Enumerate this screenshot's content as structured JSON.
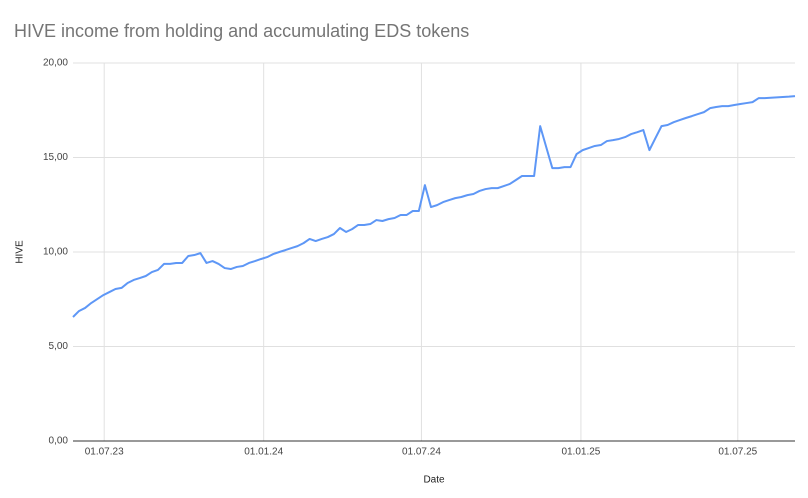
{
  "chart_data": {
    "type": "line",
    "title": "HIVE income from holding and accumulating EDS tokens",
    "x_label": "Date",
    "y_label": "HIVE",
    "x": [
      "2023-05-26",
      "2023-06-02",
      "2023-06-09",
      "2023-06-16",
      "2023-06-23",
      "2023-06-30",
      "2023-07-07",
      "2023-07-14",
      "2023-07-21",
      "2023-07-28",
      "2023-08-04",
      "2023-08-11",
      "2023-08-18",
      "2023-08-25",
      "2023-09-01",
      "2023-09-08",
      "2023-09-15",
      "2023-09-22",
      "2023-09-29",
      "2023-10-06",
      "2023-10-13",
      "2023-10-20",
      "2023-10-27",
      "2023-11-03",
      "2023-11-10",
      "2023-11-17",
      "2023-11-24",
      "2023-12-01",
      "2023-12-08",
      "2023-12-15",
      "2023-12-22",
      "2023-12-29",
      "2024-01-05",
      "2024-01-12",
      "2024-01-19",
      "2024-01-26",
      "2024-02-02",
      "2024-02-09",
      "2024-02-16",
      "2024-02-23",
      "2024-03-01",
      "2024-03-08",
      "2024-03-15",
      "2024-03-22",
      "2024-03-29",
      "2024-04-05",
      "2024-04-12",
      "2024-04-19",
      "2024-04-26",
      "2024-05-03",
      "2024-05-10",
      "2024-05-17",
      "2024-05-24",
      "2024-05-31",
      "2024-06-07",
      "2024-06-14",
      "2024-06-21",
      "2024-06-28",
      "2024-07-05",
      "2024-07-12",
      "2024-07-19",
      "2024-07-26",
      "2024-08-02",
      "2024-08-09",
      "2024-08-16",
      "2024-08-23",
      "2024-08-30",
      "2024-09-06",
      "2024-09-13",
      "2024-09-20",
      "2024-09-27",
      "2024-10-04",
      "2024-10-11",
      "2024-10-18",
      "2024-10-25",
      "2024-11-01",
      "2024-11-08",
      "2024-11-15",
      "2024-11-22",
      "2024-11-29",
      "2024-12-06",
      "2024-12-13",
      "2024-12-20",
      "2024-12-27",
      "2025-01-03",
      "2025-01-10",
      "2025-01-17",
      "2025-01-24",
      "2025-01-31",
      "2025-02-07",
      "2025-02-14",
      "2025-02-21",
      "2025-02-28",
      "2025-03-07",
      "2025-03-14",
      "2025-03-21",
      "2025-03-28",
      "2025-04-04",
      "2025-04-11",
      "2025-04-18",
      "2025-04-25",
      "2025-05-02",
      "2025-05-09",
      "2025-05-16",
      "2025-05-23",
      "2025-05-30",
      "2025-06-06",
      "2025-06-13",
      "2025-06-20",
      "2025-06-27",
      "2025-07-04",
      "2025-07-11",
      "2025-07-18",
      "2025-07-25",
      "2025-08-01",
      "2025-08-08",
      "2025-08-15",
      "2025-08-22",
      "2025-08-29",
      "2025-09-05"
    ],
    "series": [
      {
        "name": "HIVE",
        "color": "#5e97f6",
        "values": [
          6.56,
          6.88,
          7.04,
          7.3,
          7.51,
          7.72,
          7.88,
          8.04,
          8.1,
          8.36,
          8.52,
          8.62,
          8.73,
          8.94,
          9.05,
          9.37,
          9.37,
          9.42,
          9.42,
          9.79,
          9.84,
          9.94,
          9.42,
          9.52,
          9.37,
          9.15,
          9.1,
          9.21,
          9.26,
          9.42,
          9.52,
          9.63,
          9.73,
          9.89,
          10.0,
          10.1,
          10.21,
          10.31,
          10.47,
          10.69,
          10.58,
          10.69,
          10.79,
          10.95,
          11.27,
          11.06,
          11.21,
          11.43,
          11.43,
          11.48,
          11.69,
          11.64,
          11.74,
          11.8,
          11.96,
          11.96,
          12.17,
          12.17,
          13.54,
          12.38,
          12.48,
          12.64,
          12.75,
          12.85,
          12.91,
          13.01,
          13.07,
          13.23,
          13.33,
          13.38,
          13.38,
          13.49,
          13.6,
          13.81,
          14.02,
          14.02,
          14.02,
          16.66,
          15.55,
          14.44,
          14.44,
          14.49,
          14.49,
          15.18,
          15.39,
          15.5,
          15.61,
          15.66,
          15.87,
          15.92,
          15.98,
          16.08,
          16.24,
          16.34,
          16.45,
          15.39,
          16.03,
          16.66,
          16.72,
          16.87,
          16.98,
          17.09,
          17.19,
          17.3,
          17.4,
          17.61,
          17.67,
          17.72,
          17.72,
          17.78,
          17.83,
          17.88,
          17.93,
          18.14,
          18.14,
          18.16,
          18.18,
          18.2,
          18.22,
          18.25
        ]
      }
    ],
    "xlim": [
      "2023-05-26",
      "2025-09-05"
    ],
    "xticks": [
      {
        "value": "2023-07-01",
        "label": "01.07.23"
      },
      {
        "value": "2024-01-01",
        "label": "01.01.24"
      },
      {
        "value": "2024-07-01",
        "label": "01.07.24"
      },
      {
        "value": "2025-01-01",
        "label": "01.01.25"
      },
      {
        "value": "2025-07-01",
        "label": "01.07.25"
      }
    ],
    "ylim": [
      0,
      20
    ],
    "yticks": [
      {
        "value": 0,
        "label": "0,00"
      },
      {
        "value": 5,
        "label": "5,00"
      },
      {
        "value": 10,
        "label": "10,00"
      },
      {
        "value": 15,
        "label": "15,00"
      },
      {
        "value": 20,
        "label": "20,00"
      }
    ],
    "grid": true
  }
}
